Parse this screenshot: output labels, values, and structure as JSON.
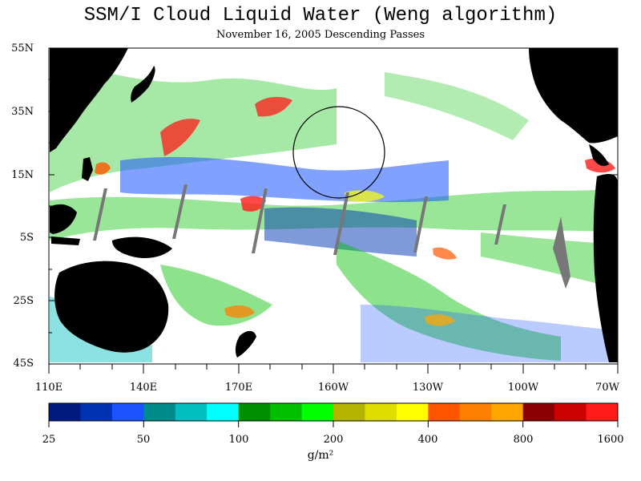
{
  "title": "SSM/I Cloud Liquid Water (Weng algorithm)",
  "subtitle": "November 16, 2005  Descending Passes",
  "lat_labels": [
    "55N",
    "35N",
    "15N",
    "5S",
    "25S",
    "45S"
  ],
  "lon_labels": [
    "110E",
    "140E",
    "170E",
    "160W",
    "130W",
    "100W",
    "70W"
  ],
  "colorbar": {
    "colors": [
      "#001a80",
      "#0033b3",
      "#1a53ff",
      "#008b8b",
      "#00bfbf",
      "#00ffff",
      "#008f00",
      "#00c000",
      "#00ff00",
      "#b3b300",
      "#dddd00",
      "#ffff00",
      "#ff5500",
      "#ff7f00",
      "#ffa500",
      "#8b0000",
      "#cc0000",
      "#ff1a1a"
    ],
    "tick_labels": [
      "25",
      "50",
      "100",
      "200",
      "400",
      "800",
      "1600"
    ],
    "units": "g/m²"
  }
}
